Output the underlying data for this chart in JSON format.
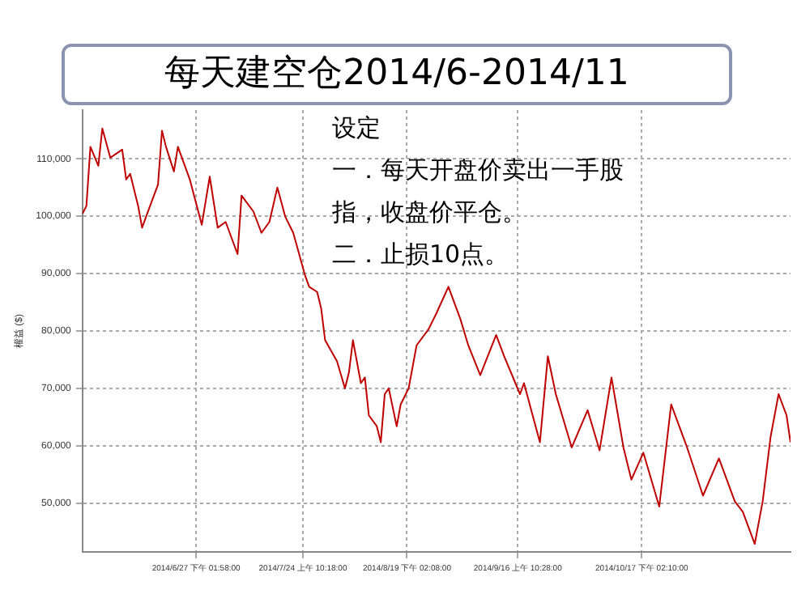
{
  "chart_data": {
    "type": "line",
    "title": "每天建空仓2014/6-2014/11",
    "ylabel": "權益 ($)",
    "annotations": [
      "设定",
      "一．每天开盘价卖出一手股指，收盘价平仓。",
      "二．止损10点。"
    ],
    "xlim": [
      "2014-05-30",
      "2014-11-24"
    ],
    "xticks": [
      {
        "value": "2014-06-27T13:58",
        "label": "2014/6/27 下午 01:58:00"
      },
      {
        "value": "2014-07-24T10:18",
        "label": "2014/7/24 上午 10:18:00"
      },
      {
        "value": "2014-08-19T14:08",
        "label": "2014/8/19 下午 02:08:00"
      },
      {
        "value": "2014-09-16T10:28",
        "label": "2014/9/16 上午 10:28:00"
      },
      {
        "value": "2014-10-17T14:10",
        "label": "2014/10/17 下午 02:10:00"
      }
    ],
    "ylim": [
      41500,
      118500
    ],
    "yticks": [
      {
        "value": 50000,
        "label": "50,000"
      },
      {
        "value": 60000,
        "label": "60,000"
      },
      {
        "value": 70000,
        "label": "70,000"
      },
      {
        "value": 80000,
        "label": "80,000"
      },
      {
        "value": 90000,
        "label": "90,000"
      },
      {
        "value": 100000,
        "label": "100,000"
      },
      {
        "value": 110000,
        "label": "110,000"
      }
    ],
    "grid": true,
    "marker": "none",
    "line_style": "solid",
    "series": [
      {
        "color": "#c00000",
        "x": [
          "2014-05-30",
          "2014-05-31",
          "2014-06-01",
          "2014-06-03",
          "2014-06-04",
          "2014-06-06",
          "2014-06-09",
          "2014-06-10",
          "2014-06-11",
          "2014-06-13",
          "2014-06-14",
          "2014-06-16",
          "2014-06-18",
          "2014-06-19",
          "2014-06-20",
          "2014-06-22",
          "2014-06-23",
          "2014-06-26",
          "2014-06-29",
          "2014-07-01",
          "2014-07-03",
          "2014-07-05",
          "2014-07-08",
          "2014-07-09",
          "2014-07-12",
          "2014-07-14",
          "2014-07-16",
          "2014-07-18",
          "2014-07-20",
          "2014-07-22",
          "2014-07-25",
          "2014-07-26",
          "2014-07-28",
          "2014-07-29",
          "2014-07-30",
          "2014-08-02",
          "2014-08-04",
          "2014-08-05",
          "2014-08-06",
          "2014-08-08",
          "2014-08-09",
          "2014-08-10",
          "2014-08-12",
          "2014-08-13",
          "2014-08-14",
          "2014-08-15",
          "2014-08-17",
          "2014-08-18",
          "2014-08-20",
          "2014-08-22",
          "2014-08-25",
          "2014-08-27",
          "2014-08-30",
          "2014-09-02",
          "2014-09-04",
          "2014-09-07",
          "2014-09-11",
          "2014-09-13",
          "2014-09-17",
          "2014-09-18",
          "2014-09-22",
          "2014-09-24",
          "2014-09-26",
          "2014-09-30",
          "2014-10-04",
          "2014-10-07",
          "2014-10-10",
          "2014-10-13",
          "2014-10-15",
          "2014-10-18",
          "2014-10-22",
          "2014-10-25",
          "2014-10-29",
          "2014-11-02",
          "2014-11-06",
          "2014-11-10",
          "2014-11-12",
          "2014-11-15",
          "2014-11-17",
          "2014-11-19",
          "2014-11-21",
          "2014-11-23",
          "2014-11-24"
        ],
        "values": [
          100400,
          101800,
          112100,
          108800,
          115300,
          110200,
          111600,
          106400,
          107400,
          101800,
          98000,
          101800,
          105500,
          114900,
          112100,
          107800,
          112100,
          106400,
          98500,
          106900,
          98000,
          99000,
          93400,
          103600,
          100800,
          97100,
          99000,
          105000,
          99900,
          97100,
          89600,
          87700,
          86800,
          84000,
          78400,
          74700,
          70000,
          72800,
          78400,
          70900,
          71900,
          65300,
          63400,
          60600,
          69000,
          70000,
          63400,
          67200,
          70000,
          77500,
          80300,
          83100,
          87700,
          82100,
          77500,
          72300,
          79300,
          75600,
          69000,
          70900,
          60600,
          75600,
          69000,
          59700,
          66200,
          59200,
          71900,
          59700,
          54100,
          58800,
          49400,
          67200,
          59700,
          51300,
          57800,
          50300,
          48500,
          42900,
          50300,
          61600,
          69000,
          65300,
          60600
        ]
      }
    ]
  }
}
